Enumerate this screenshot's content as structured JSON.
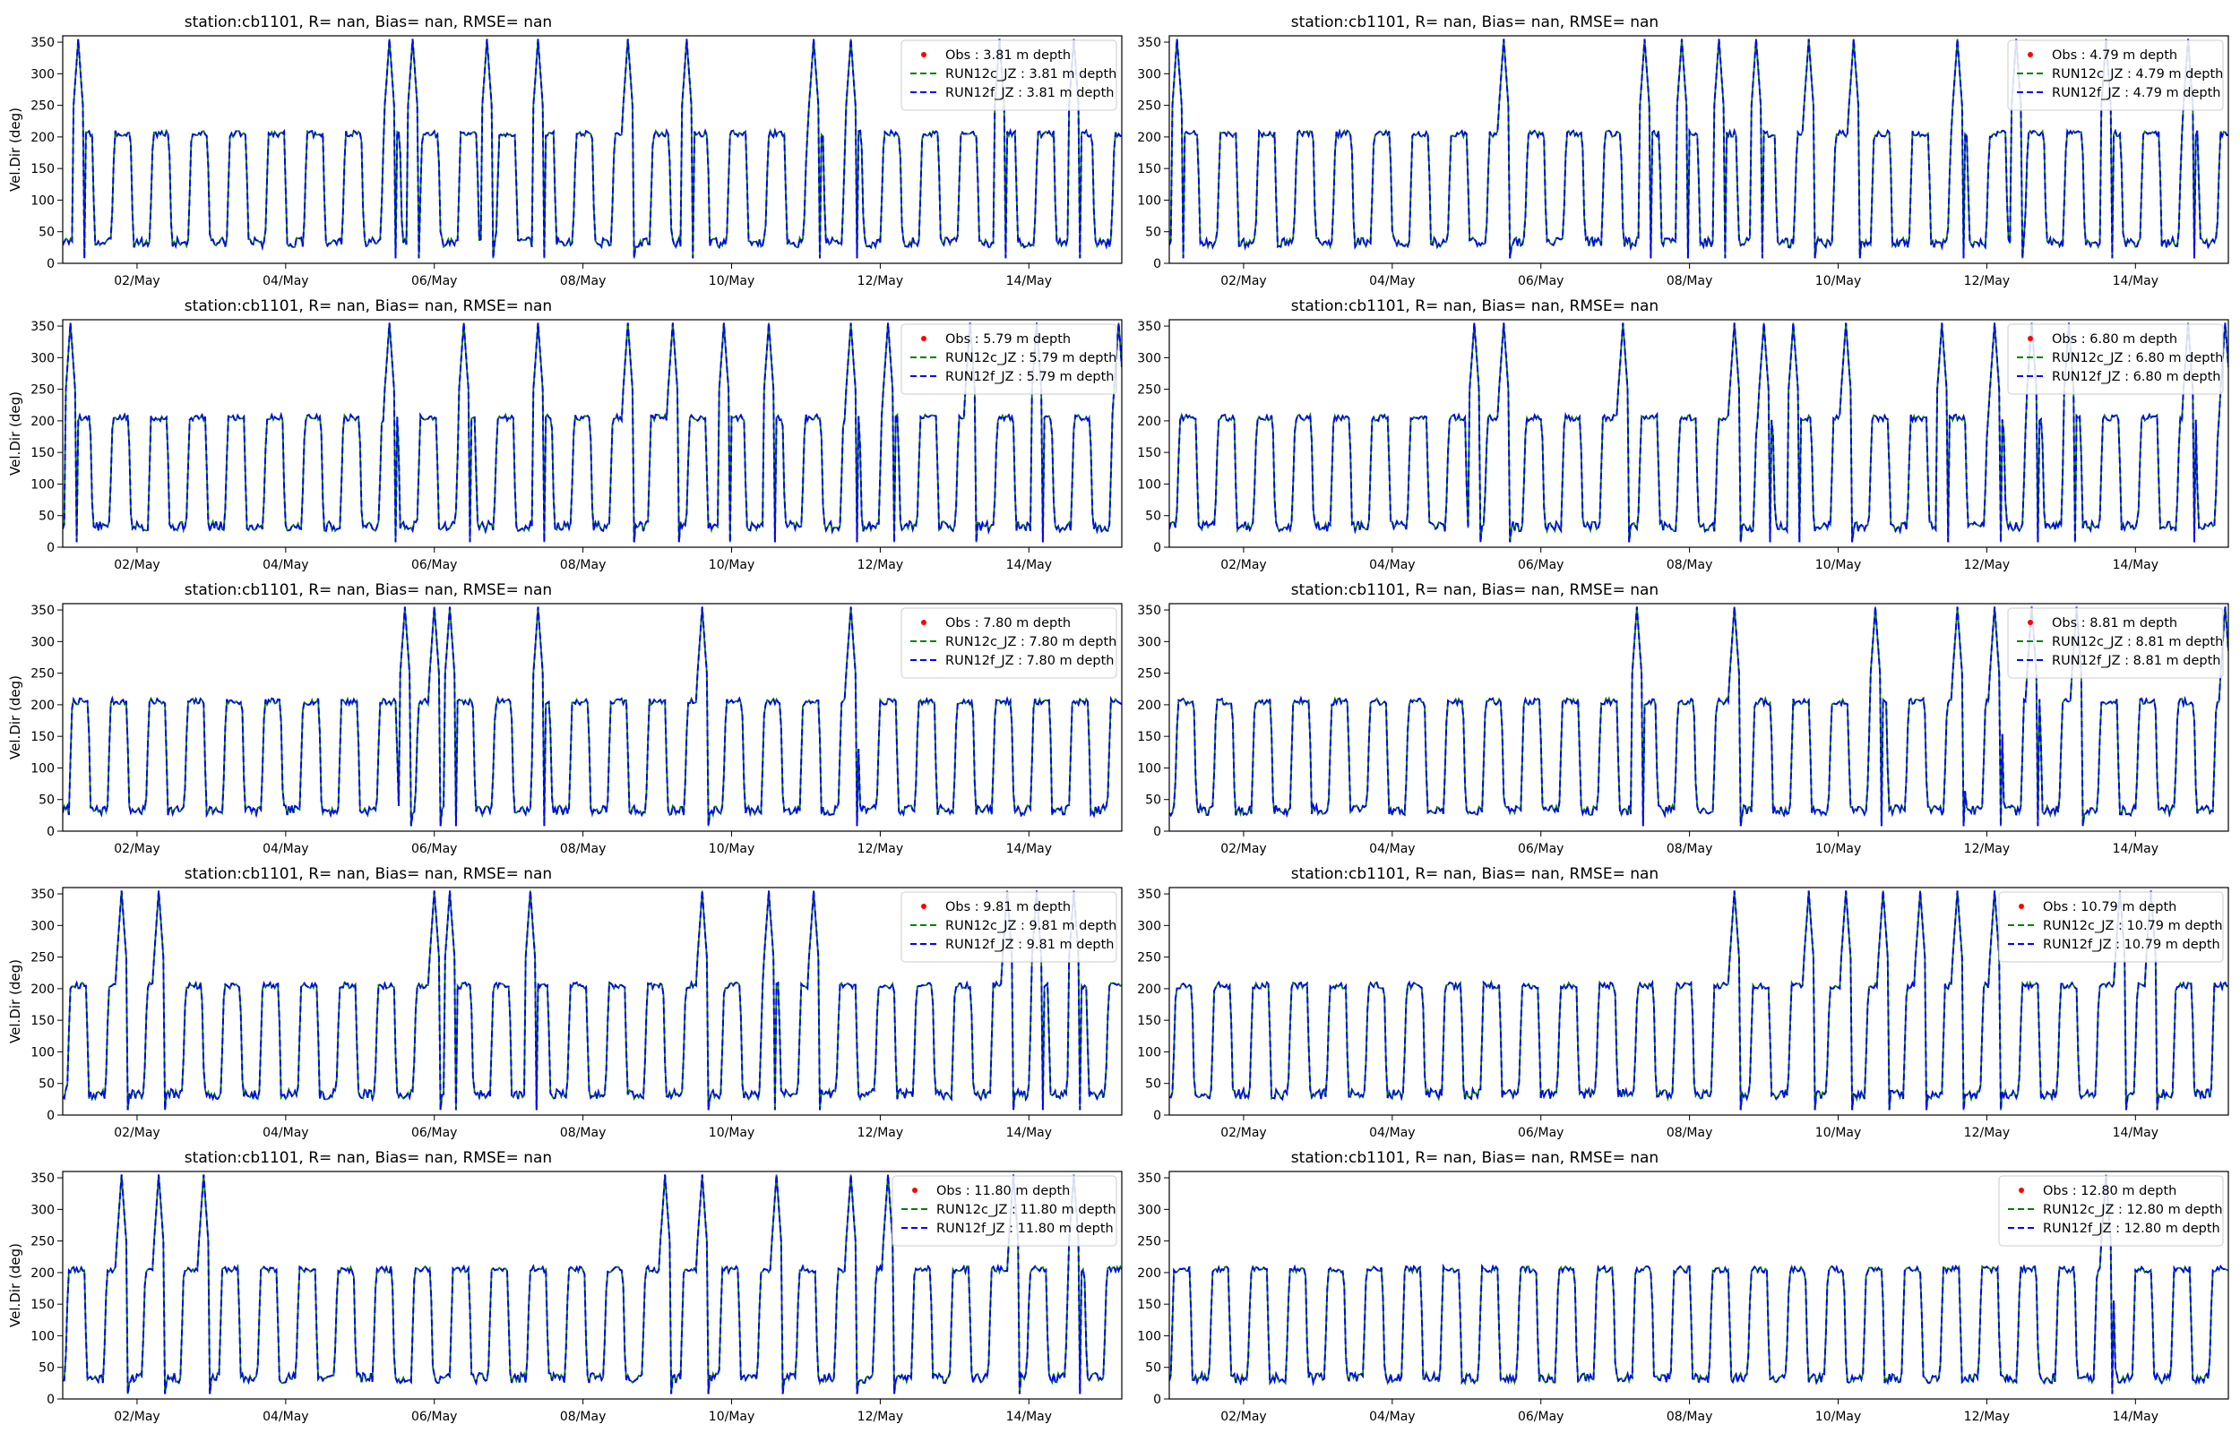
{
  "figure": {
    "background": "#ffffff"
  },
  "chart_data": [
    {
      "type": "line",
      "panel": 1,
      "title": "station:cb1101, R=   nan, Bias=    nan, RMSE=    nan",
      "ylabel": "Vel.Dir (deg)",
      "ylim": [
        0,
        360
      ],
      "yticks": [
        0,
        50,
        100,
        150,
        200,
        250,
        300,
        350
      ],
      "xlim": [
        "2023-05-01T00:00",
        "2023-05-15T06:00"
      ],
      "xticks": [
        "02/May",
        "04/May",
        "06/May",
        "08/May",
        "10/May",
        "12/May",
        "14/May"
      ],
      "legend_position": "top-right",
      "series": [
        {
          "name": "Obs : 3.81 m depth",
          "style": "dot",
          "color": "#ff0000",
          "values": []
        },
        {
          "name": "RUN12c_JZ : 3.81 m depth",
          "style": "dashed",
          "color": "#008000",
          "values": []
        },
        {
          "name": "RUN12f_JZ : 3.81 m depth",
          "style": "dashed",
          "color": "#0000ff",
          "values": []
        }
      ],
      "spikes": [
        0.2,
        4.4,
        4.7,
        5.7,
        6.4,
        7.6,
        8.4,
        10.1,
        10.6,
        12.6,
        13.6,
        14.5
      ]
    },
    {
      "type": "line",
      "panel": 2,
      "title": "station:cb1101, R=   nan, Bias=    nan, RMSE=    nan",
      "ylabel": "",
      "ylim": [
        0,
        360
      ],
      "yticks": [
        0,
        50,
        100,
        150,
        200,
        250,
        300,
        350
      ],
      "xlim": [
        "2023-05-01T00:00",
        "2023-05-15T06:00"
      ],
      "xticks": [
        "02/May",
        "04/May",
        "06/May",
        "08/May",
        "10/May",
        "12/May",
        "14/May"
      ],
      "legend_position": "top-right",
      "series": [
        {
          "name": "Obs : 4.79 m depth",
          "style": "dot",
          "color": "#ff0000",
          "values": []
        },
        {
          "name": "RUN12c_JZ : 4.79 m depth",
          "style": "dashed",
          "color": "#008000",
          "values": []
        },
        {
          "name": "RUN12f_JZ : 4.79 m depth",
          "style": "dashed",
          "color": "#0000ff",
          "values": []
        }
      ],
      "spikes": [
        0.1,
        4.5,
        6.4,
        6.9,
        7.4,
        7.9,
        8.6,
        9.2,
        10.6,
        11.4,
        12.6,
        13.7,
        14.6
      ]
    },
    {
      "type": "line",
      "panel": 3,
      "title": "station:cb1101, R=   nan, Bias=    nan, RMSE=    nan",
      "ylabel": "Vel.Dir (deg)",
      "ylim": [
        0,
        360
      ],
      "yticks": [
        0,
        50,
        100,
        150,
        200,
        250,
        300,
        350
      ],
      "xlim": [
        "2023-05-01T00:00",
        "2023-05-15T06:00"
      ],
      "xticks": [
        "02/May",
        "04/May",
        "06/May",
        "08/May",
        "10/May",
        "12/May",
        "14/May"
      ],
      "legend_position": "top-right",
      "series": [
        {
          "name": "Obs : 5.79 m depth",
          "style": "dot",
          "color": "#ff0000",
          "values": []
        },
        {
          "name": "RUN12c_JZ : 5.79 m depth",
          "style": "dashed",
          "color": "#008000",
          "values": []
        },
        {
          "name": "RUN12f_JZ : 5.79 m depth",
          "style": "dashed",
          "color": "#0000ff",
          "values": []
        }
      ],
      "spikes": [
        0.1,
        4.4,
        5.4,
        6.4,
        7.6,
        8.2,
        8.9,
        9.5,
        10.6,
        11.1,
        12.2,
        13.1,
        14.2
      ]
    },
    {
      "type": "line",
      "panel": 4,
      "title": "station:cb1101, R=   nan, Bias=    nan, RMSE=    nan",
      "ylabel": "",
      "ylim": [
        0,
        360
      ],
      "yticks": [
        0,
        50,
        100,
        150,
        200,
        250,
        300,
        350
      ],
      "xlim": [
        "2023-05-01T00:00",
        "2023-05-15T06:00"
      ],
      "xticks": [
        "02/May",
        "04/May",
        "06/May",
        "08/May",
        "10/May",
        "12/May",
        "14/May"
      ],
      "legend_position": "top-right",
      "series": [
        {
          "name": "Obs : 6.80 m depth",
          "style": "dot",
          "color": "#ff0000",
          "values": []
        },
        {
          "name": "RUN12c_JZ : 6.80 m depth",
          "style": "dashed",
          "color": "#008000",
          "values": []
        },
        {
          "name": "RUN12f_JZ : 6.80 m depth",
          "style": "dashed",
          "color": "#0000ff",
          "values": []
        }
      ],
      "spikes": [
        4.1,
        4.5,
        6.1,
        7.6,
        8.0,
        8.4,
        9.1,
        10.4,
        11.1,
        11.6,
        12.1,
        13.7,
        14.2
      ]
    },
    {
      "type": "line",
      "panel": 5,
      "title": "station:cb1101, R=   nan, Bias=    nan, RMSE=    nan",
      "ylabel": "Vel.Dir (deg)",
      "ylim": [
        0,
        360
      ],
      "yticks": [
        0,
        50,
        100,
        150,
        200,
        250,
        300,
        350
      ],
      "xlim": [
        "2023-05-01T00:00",
        "2023-05-15T06:00"
      ],
      "xticks": [
        "02/May",
        "04/May",
        "06/May",
        "08/May",
        "10/May",
        "12/May",
        "14/May"
      ],
      "legend_position": "top-right",
      "series": [
        {
          "name": "Obs : 7.80 m depth",
          "style": "dot",
          "color": "#ff0000",
          "values": []
        },
        {
          "name": "RUN12c_JZ : 7.80 m depth",
          "style": "dashed",
          "color": "#008000",
          "values": []
        },
        {
          "name": "RUN12f_JZ : 7.80 m depth",
          "style": "dashed",
          "color": "#0000ff",
          "values": []
        }
      ],
      "spikes": [
        4.6,
        5.0,
        5.2,
        6.4,
        8.6,
        10.6
      ]
    },
    {
      "type": "line",
      "panel": 6,
      "title": "station:cb1101, R=   nan, Bias=    nan, RMSE=    nan",
      "ylabel": "",
      "ylim": [
        0,
        360
      ],
      "yticks": [
        0,
        50,
        100,
        150,
        200,
        250,
        300,
        350
      ],
      "xlim": [
        "2023-05-01T00:00",
        "2023-05-15T06:00"
      ],
      "xticks": [
        "02/May",
        "04/May",
        "06/May",
        "08/May",
        "10/May",
        "12/May",
        "14/May"
      ],
      "legend_position": "top-right",
      "series": [
        {
          "name": "Obs : 8.81 m depth",
          "style": "dot",
          "color": "#ff0000",
          "values": []
        },
        {
          "name": "RUN12c_JZ : 8.81 m depth",
          "style": "dashed",
          "color": "#008000",
          "values": []
        },
        {
          "name": "RUN12f_JZ : 8.81 m depth",
          "style": "dashed",
          "color": "#0000ff",
          "values": []
        }
      ],
      "spikes": [
        6.3,
        7.6,
        9.5,
        10.6,
        11.1,
        11.6,
        12.2,
        14.2
      ]
    },
    {
      "type": "line",
      "panel": 7,
      "title": "station:cb1101, R=   nan, Bias=    nan, RMSE=    nan",
      "ylabel": "Vel.Dir (deg)",
      "ylim": [
        0,
        360
      ],
      "yticks": [
        0,
        50,
        100,
        150,
        200,
        250,
        300,
        350
      ],
      "xlim": [
        "2023-05-01T00:00",
        "2023-05-15T06:00"
      ],
      "xticks": [
        "02/May",
        "04/May",
        "06/May",
        "08/May",
        "10/May",
        "12/May",
        "14/May"
      ],
      "legend_position": "top-right",
      "series": [
        {
          "name": "Obs : 9.81 m depth",
          "style": "dot",
          "color": "#ff0000",
          "values": []
        },
        {
          "name": "RUN12c_JZ : 9.81 m depth",
          "style": "dashed",
          "color": "#008000",
          "values": []
        },
        {
          "name": "RUN12f_JZ : 9.81 m depth",
          "style": "dashed",
          "color": "#0000ff",
          "values": []
        }
      ],
      "spikes": [
        0.8,
        1.3,
        5.0,
        5.2,
        6.3,
        8.6,
        9.5,
        10.1,
        12.7,
        13.1,
        13.6
      ]
    },
    {
      "type": "line",
      "panel": 8,
      "title": "station:cb1101, R=   nan, Bias=    nan, RMSE=    nan",
      "ylabel": "",
      "ylim": [
        0,
        360
      ],
      "yticks": [
        0,
        50,
        100,
        150,
        200,
        250,
        300,
        350
      ],
      "xlim": [
        "2023-05-01T00:00",
        "2023-05-15T06:00"
      ],
      "xticks": [
        "02/May",
        "04/May",
        "06/May",
        "08/May",
        "10/May",
        "12/May",
        "14/May"
      ],
      "legend_position": "top-right",
      "series": [
        {
          "name": "Obs : 10.79 m depth",
          "style": "dot",
          "color": "#ff0000",
          "values": []
        },
        {
          "name": "RUN12c_JZ : 10.79 m depth",
          "style": "dashed",
          "color": "#008000",
          "values": []
        },
        {
          "name": "RUN12f_JZ : 10.79 m depth",
          "style": "dashed",
          "color": "#0000ff",
          "values": []
        }
      ],
      "spikes": [
        7.6,
        8.6,
        9.1,
        9.6,
        10.1,
        10.6,
        11.1,
        12.8,
        13.2
      ]
    },
    {
      "type": "line",
      "panel": 9,
      "title": "station:cb1101, R=   nan, Bias=    nan, RMSE=    nan",
      "ylabel": "Vel.Dir (deg)",
      "ylim": [
        0,
        360
      ],
      "yticks": [
        0,
        50,
        100,
        150,
        200,
        250,
        300,
        350
      ],
      "xlim": [
        "2023-05-01T00:00",
        "2023-05-15T06:00"
      ],
      "xticks": [
        "02/May",
        "04/May",
        "06/May",
        "08/May",
        "10/May",
        "12/May",
        "14/May"
      ],
      "legend_position": "top-right",
      "series": [
        {
          "name": "Obs : 11.80 m depth",
          "style": "dot",
          "color": "#ff0000",
          "values": []
        },
        {
          "name": "RUN12c_JZ : 11.80 m depth",
          "style": "dashed",
          "color": "#008000",
          "values": []
        },
        {
          "name": "RUN12f_JZ : 11.80 m depth",
          "style": "dashed",
          "color": "#0000ff",
          "values": []
        }
      ],
      "spikes": [
        0.8,
        1.3,
        1.9,
        8.1,
        8.6,
        9.6,
        10.6,
        11.1,
        12.8,
        13.6
      ]
    },
    {
      "type": "line",
      "panel": 10,
      "title": "station:cb1101, R=   nan, Bias=    nan, RMSE=    nan",
      "ylabel": "",
      "ylim": [
        0,
        360
      ],
      "yticks": [
        0,
        50,
        100,
        150,
        200,
        250,
        300,
        350
      ],
      "xlim": [
        "2023-05-01T00:00",
        "2023-05-15T06:00"
      ],
      "xticks": [
        "02/May",
        "04/May",
        "06/May",
        "08/May",
        "10/May",
        "12/May",
        "14/May"
      ],
      "legend_position": "top-right",
      "series": [
        {
          "name": "Obs : 12.80 m depth",
          "style": "dot",
          "color": "#ff0000",
          "values": []
        },
        {
          "name": "RUN12c_JZ : 12.80 m depth",
          "style": "dashed",
          "color": "#008000",
          "values": []
        },
        {
          "name": "RUN12f_JZ : 12.80 m depth",
          "style": "dashed",
          "color": "#0000ff",
          "values": []
        }
      ],
      "spikes": [
        12.6
      ]
    }
  ]
}
